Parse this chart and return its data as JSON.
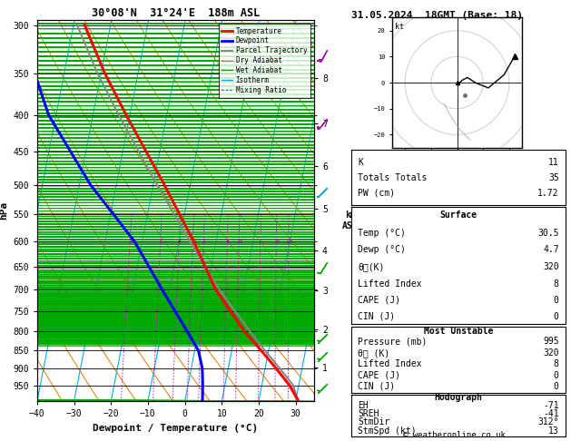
{
  "title_left": "30°08'N  31°24'E  188m ASL",
  "title_right": "31.05.2024  18GMT (Base: 18)",
  "xlabel": "Dewpoint / Temperature (°C)",
  "ylabel_left": "hPa",
  "pressure_levels": [
    300,
    350,
    400,
    450,
    500,
    550,
    600,
    650,
    700,
    750,
    800,
    850,
    900,
    950
  ],
  "temp_ticks": [
    -40,
    -30,
    -20,
    -10,
    0,
    10,
    20,
    30
  ],
  "dry_adiabat_color": "#e07800",
  "wet_adiabat_color": "#00aa00",
  "isotherm_color": "#00aaff",
  "mixing_ratio_color": "#cc00cc",
  "temperature_color": "#ff0000",
  "dewpoint_color": "#0000ff",
  "parcel_color": "#888888",
  "temp_profile_p": [
    995,
    950,
    900,
    850,
    800,
    700,
    600,
    500,
    400,
    350,
    300
  ],
  "temp_profile_T": [
    30.5,
    27.5,
    23.0,
    18.0,
    12.5,
    2.5,
    -6.0,
    -17.0,
    -31.0,
    -39.0,
    -47.0
  ],
  "dewp_profile_T": [
    4.7,
    4.0,
    3.0,
    1.0,
    -3.0,
    -12.0,
    -22.0,
    -37.0,
    -52.0,
    -58.0,
    -65.0
  ],
  "parcel_profile_T": [
    30.5,
    28.5,
    24.0,
    19.0,
    14.0,
    3.5,
    -7.0,
    -19.0,
    -33.0,
    -41.0,
    -49.0
  ],
  "mixing_ratios": [
    1,
    2,
    3,
    4,
    5,
    8,
    10,
    15,
    20,
    25
  ],
  "mixing_ratio_labels_p": 595,
  "info_K": "11",
  "info_TT": "35",
  "info_PW": "1.72",
  "info_surf_temp": "30.5",
  "info_surf_dewp": "4.7",
  "info_surf_theta": "320",
  "info_surf_li": "8",
  "info_surf_cape": "0",
  "info_surf_cin": "0",
  "info_mu_pres": "995",
  "info_mu_theta": "320",
  "info_mu_li": "8",
  "info_mu_cape": "0",
  "info_mu_cin": "0",
  "info_hodo_eh": "-71",
  "info_hodo_sreh": "-41",
  "info_hodo_stmdir": "312°",
  "info_hodo_stmspd": "13",
  "copyright": "© weatheronline.co.uk",
  "windbarb_pressures": [
    325,
    405,
    505,
    640,
    805,
    855,
    945
  ],
  "windbarb_colors": [
    "#aa00aa",
    "#aa00aa",
    "#0099cc",
    "#00aa00",
    "#00aa00",
    "#00aa00",
    "#00aa00"
  ]
}
